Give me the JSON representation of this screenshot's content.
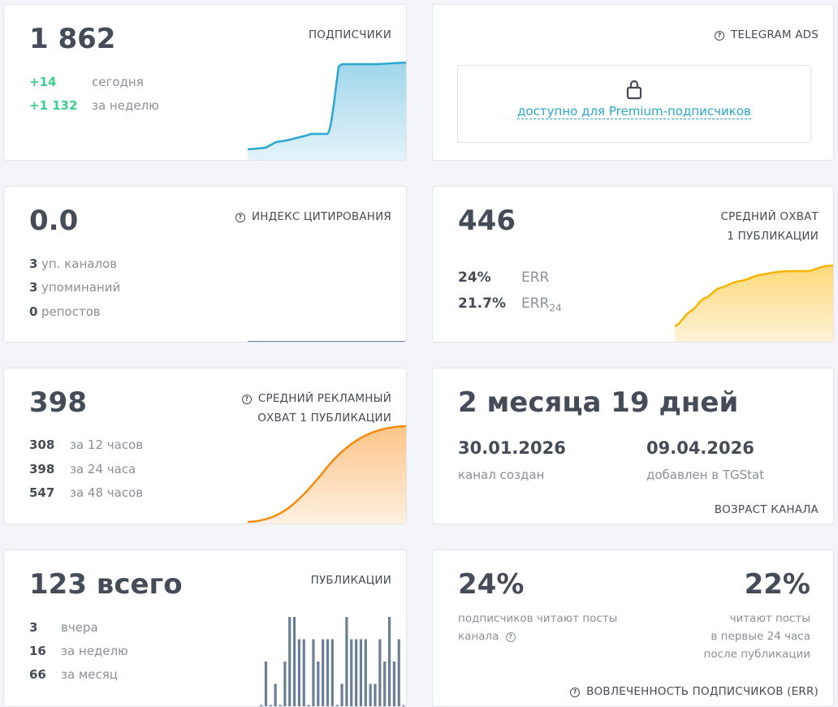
{
  "subscribers": {
    "value": "1 862",
    "label": "ПОДПИСЧИКИ",
    "rows": [
      {
        "num": "+14",
        "text": "сегодня"
      },
      {
        "num": "+1 132",
        "text": "за неделю"
      }
    ]
  },
  "ads": {
    "label": "TELEGRAM ADS",
    "lock_icon": "lock-icon",
    "link": "доступно для Premium-подписчиков"
  },
  "citation": {
    "value": "0.0",
    "label": "ИНДЕКС ЦИТИРОВАНИЯ",
    "rows": [
      {
        "num": "3",
        "text": "уп. каналов"
      },
      {
        "num": "3",
        "text": "упоминаний"
      },
      {
        "num": "0",
        "text": "репостов"
      }
    ]
  },
  "reach": {
    "value": "446",
    "label1": "СРЕДНИЙ ОХВАТ",
    "label2": "1 ПУБЛИКАЦИИ",
    "rows": [
      {
        "num": "24%",
        "text": "ERR",
        "sub": ""
      },
      {
        "num": "21.7%",
        "text": "ERR",
        "sub": "24"
      }
    ]
  },
  "ad_reach": {
    "value": "398",
    "label1": "СРЕДНИЙ РЕКЛАМНЫЙ",
    "label2": "ОХВАТ 1 ПУБЛИКАЦИИ",
    "rows": [
      {
        "num": "308",
        "text": "за 12 часов"
      },
      {
        "num": "398",
        "text": "за 24 часа"
      },
      {
        "num": "547",
        "text": "за 48 часов"
      }
    ]
  },
  "age": {
    "value": "2 месяца 19 дней",
    "created_date": "30.01.2026",
    "created_label": "канал создан",
    "added_date": "09.04.2026",
    "added_label": "добавлен в TGStat",
    "label": "ВОЗРАСТ КАНАЛА"
  },
  "posts": {
    "value": "123 всего",
    "label": "ПУБЛИКАЦИИ",
    "rows": [
      {
        "num": "3",
        "text": "вчера"
      },
      {
        "num": "16",
        "text": "за неделю"
      },
      {
        "num": "66",
        "text": "за месяц"
      }
    ],
    "daily_counts": [
      0,
      2,
      0,
      1,
      0,
      2,
      4,
      4,
      3,
      3,
      0,
      3,
      2,
      3,
      3,
      3,
      0,
      1,
      4,
      3,
      3,
      3,
      3,
      1,
      1,
      3,
      2,
      4,
      2,
      3,
      0
    ],
    "bar_color": "#6a7f96"
  },
  "engagement": {
    "left_value": "24%",
    "left_text1": "подписчиков читают посты",
    "left_text2": "канала",
    "right_value": "22%",
    "right_text": [
      "читают посты",
      "в первые 24 часа",
      "после публикации"
    ],
    "label": "ВОВЛЕЧЕННОСТЬ ПОДПИСЧИКОВ (ERR)"
  },
  "colors": {
    "green": "#3ecf8e",
    "blue": "#2aa7d0",
    "yellow": "#f7b500",
    "orange": "#f58a0b",
    "link": "#2aa7d0"
  }
}
